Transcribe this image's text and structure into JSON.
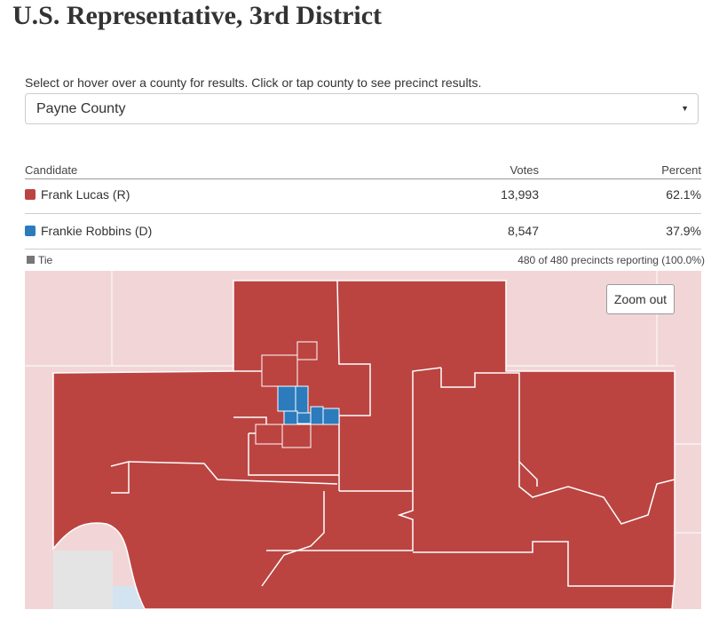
{
  "header": {
    "title": "U.S. Representative, 3rd District"
  },
  "instruction": "Select or hover over a county for results. Click or tap county to see precinct results.",
  "select": {
    "value": "Payne County"
  },
  "table": {
    "columns": [
      "Candidate",
      "Votes",
      "Percent"
    ],
    "rows": [
      [
        "Frank Lucas (R)",
        "13,993",
        "62.1%"
      ],
      [
        "Frankie Robbins (D)",
        "8,547",
        "37.9%"
      ]
    ]
  },
  "legend": {
    "tie": "Tie"
  },
  "reporting": "480 of 480 precincts reporting (100.0%)",
  "map": {
    "zoom_button": "Zoom out"
  }
}
